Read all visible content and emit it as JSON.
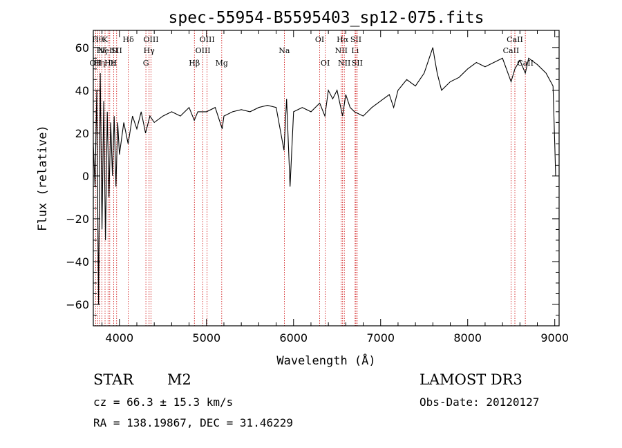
{
  "chart_data": {
    "type": "line",
    "title": "spec-55954-B5595403_sp12-075.fits",
    "xlabel": "Wavelength (Å)",
    "ylabel": "Flux (relative)",
    "xlim": [
      3700,
      9050
    ],
    "ylim": [
      -70,
      68
    ],
    "x_ticks": [
      4000,
      5000,
      6000,
      7000,
      8000,
      9000
    ],
    "y_ticks": [
      -60,
      -40,
      -20,
      0,
      20,
      40,
      60
    ],
    "grid": false,
    "series": [
      {
        "x": [
          3700,
          3720,
          3740,
          3760,
          3780,
          3800,
          3820,
          3840,
          3860,
          3880,
          3900,
          3920,
          3940,
          3960,
          3980,
          4000,
          4050,
          4100,
          4150,
          4200,
          4250,
          4300,
          4350,
          4400,
          4500,
          4600,
          4700,
          4800,
          4860,
          4900,
          5000,
          5100,
          5180,
          5200,
          5300,
          5400,
          5500,
          5600,
          5700,
          5800,
          5890,
          5920,
          5960,
          6000,
          6100,
          6200,
          6300,
          6360,
          6400,
          6450,
          6500,
          6563,
          6600,
          6650,
          6700,
          6800,
          6900,
          7000,
          7100,
          7150,
          7200,
          7300,
          7400,
          7500,
          7600,
          7620,
          7650,
          7700,
          7800,
          7900,
          8000,
          8100,
          8200,
          8300,
          8400,
          8498,
          8542,
          8600,
          8662,
          8700,
          8800,
          8900,
          8980,
          9000,
          9010
        ],
        "y": [
          15,
          -5,
          40,
          -60,
          48,
          -25,
          35,
          -30,
          30,
          -10,
          25,
          0,
          28,
          -5,
          25,
          10,
          25,
          15,
          28,
          22,
          30,
          20,
          28,
          25,
          28,
          30,
          28,
          32,
          26,
          30,
          30,
          32,
          22,
          28,
          30,
          31,
          30,
          32,
          33,
          32,
          12,
          36,
          -5,
          30,
          32,
          30,
          34,
          28,
          40,
          36,
          40,
          28,
          38,
          32,
          30,
          28,
          32,
          35,
          38,
          32,
          40,
          45,
          42,
          48,
          60,
          55,
          48,
          40,
          44,
          46,
          50,
          53,
          51,
          53,
          55,
          44,
          50,
          54,
          48,
          55,
          52,
          48,
          42,
          15,
          0
        ]
      }
    ],
    "lines": [
      {
        "x": 3727,
        "label": "OII",
        "row": 2
      },
      {
        "x": 3750,
        "label": "Hθ",
        "row": 0
      },
      {
        "x": 3771,
        "label": "Hη",
        "row": 2
      },
      {
        "x": 3798,
        "label": "Hζ",
        "row": 1
      },
      {
        "x": 3835,
        "label": "K",
        "row": 0
      },
      {
        "x": 3869,
        "label": "NeIII",
        "row": 1
      },
      {
        "x": 3889,
        "label": "Hε",
        "row": 2
      },
      {
        "x": 3934,
        "label": "H",
        "row": 2
      },
      {
        "x": 3968,
        "label": "SII",
        "row": 1
      },
      {
        "x": 4102,
        "label": "Hδ",
        "row": 0
      },
      {
        "x": 4304,
        "label": "G",
        "row": 2
      },
      {
        "x": 4341,
        "label": "Hγ",
        "row": 1
      },
      {
        "x": 4363,
        "label": "OIII",
        "row": 0
      },
      {
        "x": 4861,
        "label": "Hβ",
        "row": 2
      },
      {
        "x": 4959,
        "label": "OIII",
        "row": 1
      },
      {
        "x": 5007,
        "label": "OIII",
        "row": 0
      },
      {
        "x": 5175,
        "label": "Mg",
        "row": 2
      },
      {
        "x": 5894,
        "label": "Na",
        "row": 1
      },
      {
        "x": 6300,
        "label": "OI",
        "row": 0
      },
      {
        "x": 6364,
        "label": "OI",
        "row": 2
      },
      {
        "x": 6548,
        "label": "NII",
        "row": 1
      },
      {
        "x": 6563,
        "label": "Hα",
        "row": 0
      },
      {
        "x": 6583,
        "label": "NII",
        "row": 2
      },
      {
        "x": 6707,
        "label": "Li",
        "row": 1
      },
      {
        "x": 6716,
        "label": "SII",
        "row": 0
      },
      {
        "x": 6731,
        "label": "SII",
        "row": 2
      },
      {
        "x": 8498,
        "label": "CaII",
        "row": 1
      },
      {
        "x": 8542,
        "label": "CaII",
        "row": 0
      },
      {
        "x": 8662,
        "label": "CaII",
        "row": 2
      }
    ]
  },
  "info": {
    "class": "STAR",
    "subclass": "M2",
    "survey": "LAMOST DR3",
    "cz": "cz = 66.3 ± 15.3 km/s",
    "obs_date": "Obs-Date: 20120127",
    "coords": "RA = 138.19867, DEC =  31.46229"
  },
  "colors": {
    "spectrum": "#000000",
    "line_markers": "#cc0000",
    "background": "#ffffff"
  }
}
